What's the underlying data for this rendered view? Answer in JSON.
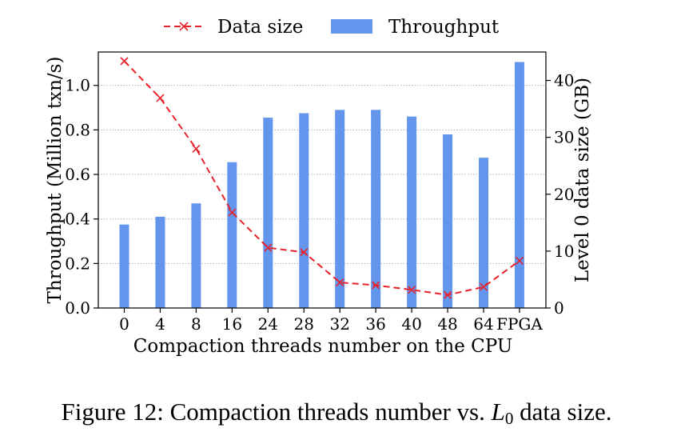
{
  "chart_data": {
    "type": "bar",
    "categories": [
      "0",
      "4",
      "8",
      "16",
      "24",
      "28",
      "32",
      "36",
      "40",
      "48",
      "64",
      "FPGA"
    ],
    "xlabel": "Compaction threads number on the CPU",
    "series": [
      {
        "name": "Throughput",
        "type": "bar",
        "axis": "left",
        "color": "#6495ed",
        "values": [
          0.375,
          0.41,
          0.47,
          0.655,
          0.855,
          0.875,
          0.89,
          0.89,
          0.86,
          0.78,
          0.675,
          1.105
        ]
      },
      {
        "name": "Data size",
        "type": "line",
        "axis": "right",
        "color": "#e8212b",
        "marker": "x",
        "line_style": "dashed",
        "values": [
          43.4,
          36.9,
          28.0,
          16.8,
          10.6,
          9.8,
          4.5,
          4.0,
          3.2,
          2.3,
          3.7,
          8.3
        ]
      }
    ],
    "left_axis": {
      "label": "Throughput (Million txn/s)",
      "ylim": [
        0,
        1.15
      ],
      "ticks": [
        0.0,
        0.2,
        0.4,
        0.6,
        0.8,
        1.0
      ],
      "tick_labels": [
        "0.0",
        "0.2",
        "0.4",
        "0.6",
        "0.8",
        "1.0"
      ]
    },
    "right_axis": {
      "label": "Level 0 data size (GB)",
      "ylim": [
        0,
        45
      ],
      "ticks": [
        0,
        10,
        20,
        30,
        40
      ],
      "tick_labels": [
        "0",
        "10",
        "20",
        "30",
        "40"
      ]
    },
    "grid": "horizontal-dotted",
    "legend": {
      "placement": "top-center",
      "entries": [
        "Data size",
        "Throughput"
      ]
    }
  },
  "caption": {
    "prefix": "Figure 12: Compaction threads number vs. ",
    "symbol": "L",
    "subscript": "0",
    "suffix": " data size."
  }
}
